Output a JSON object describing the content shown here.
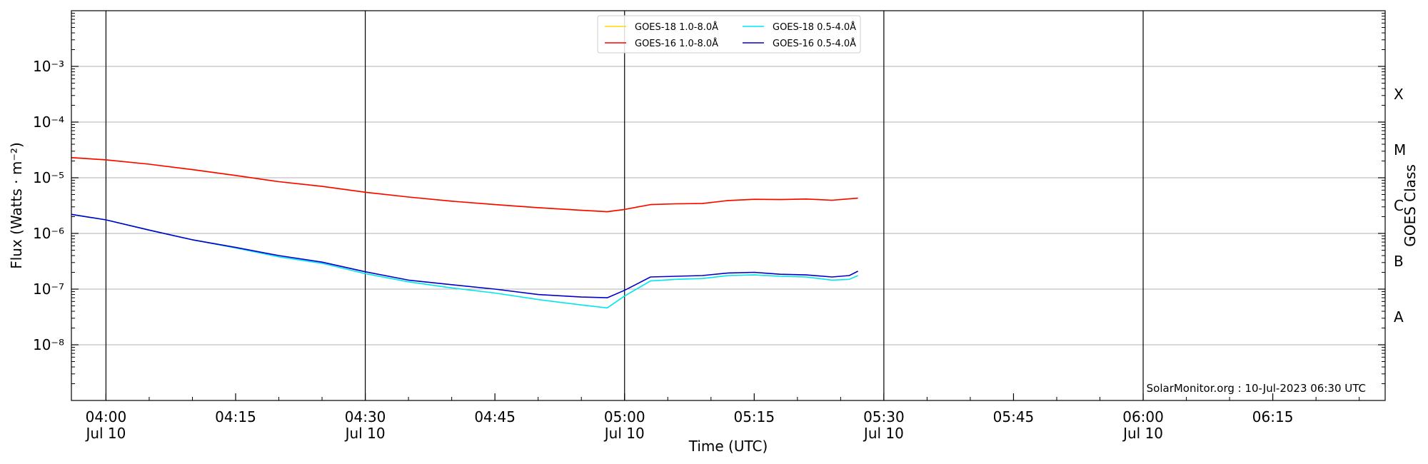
{
  "chart_data": {
    "type": "line",
    "xlabel": "Time (UTC)",
    "ylabel": "Flux (Watts · m⁻²)",
    "y2label": "GOES Class",
    "yscale": "log",
    "xlim": [
      "03:56",
      "06:28"
    ],
    "ylim": [
      1e-09,
      0.01
    ],
    "grid": "horizontal at decades, vertical lines every 30 min",
    "legend_position": "top-center",
    "x_ticks": [
      {
        "time": "04:00",
        "label": "04:00",
        "sublabel": "Jul 10"
      },
      {
        "time": "04:15",
        "label": "04:15",
        "sublabel": ""
      },
      {
        "time": "04:30",
        "label": "04:30",
        "sublabel": "Jul 10"
      },
      {
        "time": "04:45",
        "label": "04:45",
        "sublabel": ""
      },
      {
        "time": "05:00",
        "label": "05:00",
        "sublabel": "Jul 10"
      },
      {
        "time": "05:15",
        "label": "05:15",
        "sublabel": ""
      },
      {
        "time": "05:30",
        "label": "05:30",
        "sublabel": "Jul 10"
      },
      {
        "time": "05:45",
        "label": "05:45",
        "sublabel": ""
      },
      {
        "time": "06:00",
        "label": "06:00",
        "sublabel": "Jul 10"
      },
      {
        "time": "06:15",
        "label": "06:15",
        "sublabel": ""
      }
    ],
    "y_ticks": [
      {
        "exp": -8,
        "label": "10⁻⁸"
      },
      {
        "exp": -7,
        "label": "10⁻⁷"
      },
      {
        "exp": -6,
        "label": "10⁻⁶"
      },
      {
        "exp": -5,
        "label": "10⁻⁵"
      },
      {
        "exp": -4,
        "label": "10⁻⁴"
      },
      {
        "exp": -3,
        "label": "10⁻³"
      }
    ],
    "class_labels": [
      {
        "label": "A",
        "exp": -7.5
      },
      {
        "label": "B",
        "exp": -6.5
      },
      {
        "label": "C",
        "exp": -5.5
      },
      {
        "label": "M",
        "exp": -4.5
      },
      {
        "label": "X",
        "exp": -3.5
      }
    ],
    "series": [
      {
        "name": "GOES-18 1.0-8.0Å",
        "color": "#ffd700",
        "x": [
          "03:56",
          "04:00",
          "04:05",
          "04:10",
          "04:15",
          "04:20",
          "04:25",
          "04:30",
          "04:35",
          "04:40",
          "04:45",
          "04:50",
          "04:55",
          "04:58",
          "05:00",
          "05:03",
          "05:06",
          "05:09",
          "05:12",
          "05:15",
          "05:18",
          "05:21",
          "05:24",
          "05:27"
        ],
        "y": [
          2.3e-05,
          2.1e-05,
          1.75e-05,
          1.4e-05,
          1.1e-05,
          8.5e-06,
          7e-06,
          5.5e-06,
          4.5e-06,
          3.8e-06,
          3.3e-06,
          2.9e-06,
          2.6e-06,
          2.45e-06,
          2.7e-06,
          3.3e-06,
          3.4e-06,
          3.45e-06,
          3.9e-06,
          4.1e-06,
          4.05e-06,
          4.15e-06,
          3.95e-06,
          4.3e-06
        ]
      },
      {
        "name": "GOES-16 1.0-8.0Å",
        "color": "#ff0000",
        "x": [
          "03:56",
          "04:00",
          "04:05",
          "04:10",
          "04:15",
          "04:20",
          "04:25",
          "04:30",
          "04:35",
          "04:40",
          "04:45",
          "04:50",
          "04:55",
          "04:58",
          "05:00",
          "05:03",
          "05:06",
          "05:09",
          "05:12",
          "05:15",
          "05:18",
          "05:21",
          "05:24",
          "05:27"
        ],
        "y": [
          2.3e-05,
          2.1e-05,
          1.75e-05,
          1.4e-05,
          1.1e-05,
          8.5e-06,
          7e-06,
          5.5e-06,
          4.5e-06,
          3.8e-06,
          3.3e-06,
          2.9e-06,
          2.6e-06,
          2.45e-06,
          2.7e-06,
          3.3e-06,
          3.4e-06,
          3.45e-06,
          3.9e-06,
          4.1e-06,
          4.05e-06,
          4.15e-06,
          3.95e-06,
          4.3e-06
        ]
      },
      {
        "name": "GOES-18 0.5-4.0Å",
        "color": "#00e5ee",
        "x": [
          "03:56",
          "04:00",
          "04:05",
          "04:10",
          "04:15",
          "04:20",
          "04:25",
          "04:30",
          "04:35",
          "04:40",
          "04:45",
          "04:50",
          "04:55",
          "04:58",
          "05:00",
          "05:03",
          "05:06",
          "05:09",
          "05:12",
          "05:15",
          "05:18",
          "05:21",
          "05:24",
          "05:26",
          "05:27"
        ],
        "y": [
          2.2e-06,
          1.75e-06,
          1.15e-06,
          7.7e-07,
          5.5e-07,
          3.8e-07,
          2.9e-07,
          1.9e-07,
          1.35e-07,
          1.05e-07,
          8.5e-08,
          6.5e-08,
          5.2e-08,
          4.6e-08,
          7.5e-08,
          1.4e-07,
          1.5e-07,
          1.55e-07,
          1.75e-07,
          1.8e-07,
          1.7e-07,
          1.65e-07,
          1.45e-07,
          1.5e-07,
          1.75e-07
        ]
      },
      {
        "name": "GOES-16 0.5-4.0Å",
        "color": "#0000cd",
        "x": [
          "03:56",
          "04:00",
          "04:05",
          "04:10",
          "04:15",
          "04:20",
          "04:25",
          "04:30",
          "04:35",
          "04:40",
          "04:45",
          "04:50",
          "04:55",
          "04:58",
          "05:00",
          "05:03",
          "05:06",
          "05:09",
          "05:12",
          "05:15",
          "05:18",
          "05:21",
          "05:24",
          "05:26",
          "05:27"
        ],
        "y": [
          2.2e-06,
          1.75e-06,
          1.15e-06,
          7.7e-07,
          5.6e-07,
          4e-07,
          3.05e-07,
          2.05e-07,
          1.45e-07,
          1.2e-07,
          1e-07,
          8e-08,
          7.2e-08,
          7e-08,
          9.5e-08,
          1.65e-07,
          1.7e-07,
          1.75e-07,
          1.95e-07,
          2e-07,
          1.85e-07,
          1.8e-07,
          1.65e-07,
          1.75e-07,
          2.1e-07
        ]
      }
    ],
    "annotations": [
      "SolarMonitor.org : 10-Jul-2023 06:30 UTC"
    ]
  }
}
